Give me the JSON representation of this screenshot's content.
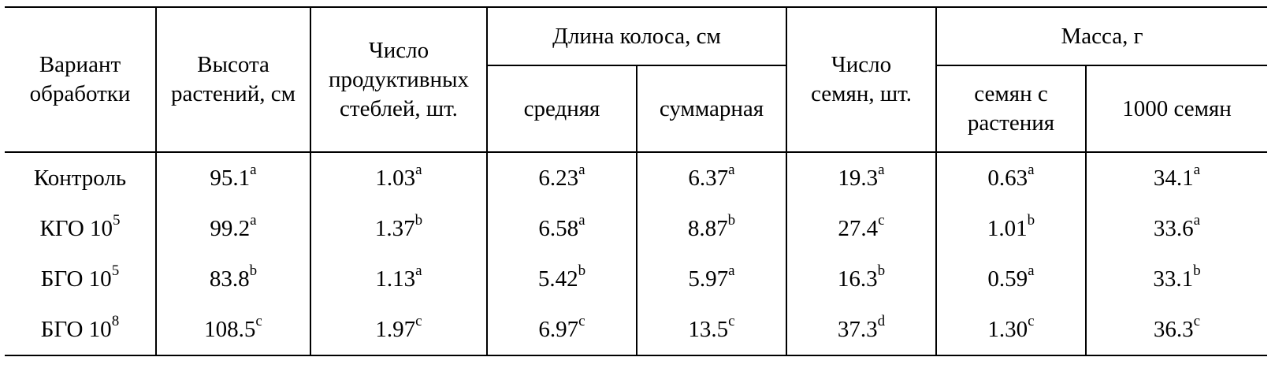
{
  "table": {
    "headers": {
      "variant": [
        "Вариант",
        "обработки"
      ],
      "height": [
        "Высота",
        "растений, см"
      ],
      "stems": [
        "Число",
        "продуктивных",
        "стеблей, шт."
      ],
      "ear_length": "Длина колоса, см",
      "ear_mean": "средняя",
      "ear_total": "суммарная",
      "seeds": [
        "Число",
        "семян, шт."
      ],
      "mass": "Масса, г",
      "mass_per_plant": [
        "семян с",
        "растения"
      ],
      "mass_1000": "1000 семян"
    },
    "rows": [
      {
        "label": "Контроль",
        "label_sup": "",
        "height": "95.1",
        "height_sup": "a",
        "stems": "1.03",
        "stems_sup": "a",
        "ear_mean": "6.23",
        "ear_mean_sup": "a",
        "ear_total": "6.37",
        "ear_total_sup": "a",
        "seeds": "19.3",
        "seeds_sup": "a",
        "mass_plant": "0.63",
        "mass_plant_sup": "a",
        "mass_1000": "34.1",
        "mass_1000_sup": "a"
      },
      {
        "label": "КГО 10",
        "label_sup": "5",
        "height": "99.2",
        "height_sup": "a",
        "stems": "1.37",
        "stems_sup": "b",
        "ear_mean": "6.58",
        "ear_mean_sup": "a",
        "ear_total": "8.87",
        "ear_total_sup": "b",
        "seeds": "27.4",
        "seeds_sup": "c",
        "mass_plant": "1.01",
        "mass_plant_sup": "b",
        "mass_1000": "33.6",
        "mass_1000_sup": "a"
      },
      {
        "label": "БГО 10",
        "label_sup": "5",
        "height": "83.8",
        "height_sup": "b",
        "stems": "1.13",
        "stems_sup": "a",
        "ear_mean": "5.42",
        "ear_mean_sup": "b",
        "ear_total": "5.97",
        "ear_total_sup": "a",
        "seeds": "16.3",
        "seeds_sup": "b",
        "mass_plant": "0.59",
        "mass_plant_sup": "a",
        "mass_1000": "33.1",
        "mass_1000_sup": "b"
      },
      {
        "label": "БГО 10",
        "label_sup": "8",
        "height": "108.5",
        "height_sup": "c",
        "stems": "1.97",
        "stems_sup": "c",
        "ear_mean": "6.97",
        "ear_mean_sup": "c",
        "ear_total": "13.5",
        "ear_total_sup": "c",
        "seeds": "37.3",
        "seeds_sup": "d",
        "mass_plant": "1.30",
        "mass_plant_sup": "c",
        "mass_1000": "36.3",
        "mass_1000_sup": "c"
      }
    ]
  }
}
